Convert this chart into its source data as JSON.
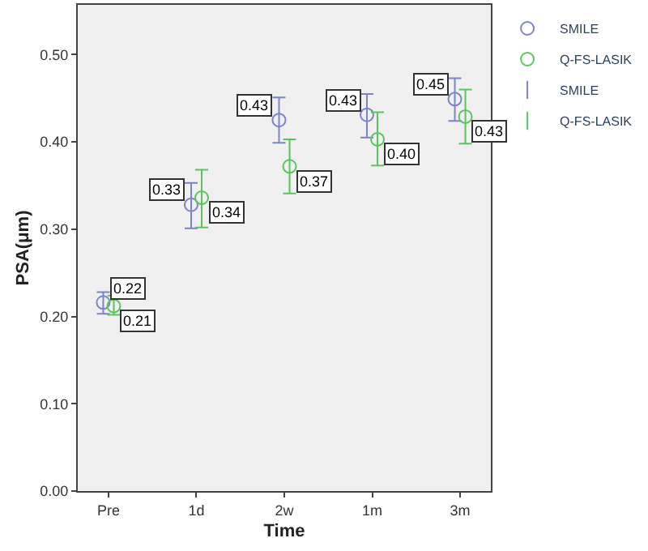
{
  "chart_data": {
    "type": "scatter",
    "xlabel": "Time",
    "ylabel": "PSA(μm)",
    "categories": [
      "Pre",
      "1d",
      "2w",
      "1m",
      "3m"
    ],
    "ylim": [
      0,
      0.557
    ],
    "yticks": [
      {
        "value": 0,
        "label": "0.00"
      },
      {
        "value": 0.1,
        "label": "0.10"
      },
      {
        "value": 0.2,
        "label": "0.20"
      },
      {
        "value": 0.3,
        "label": "0.30"
      },
      {
        "value": 0.4,
        "label": "0.40"
      },
      {
        "value": 0.5,
        "label": "0.50"
      }
    ],
    "grid": false,
    "legend": "top right",
    "marker": "circle",
    "series": [
      {
        "name": "SMILE",
        "color": "#7b83c9",
        "values": [
          0.216,
          0.328,
          0.425,
          0.431,
          0.449
        ],
        "errors": [
          [
            0.203,
            0.228
          ],
          [
            0.301,
            0.353
          ],
          [
            0.399,
            0.451
          ],
          [
            0.405,
            0.455
          ],
          [
            0.424,
            0.473
          ]
        ],
        "value_labels": [
          "0.22",
          "0.33",
          "0.43",
          "0.43",
          "0.45"
        ]
      },
      {
        "name": "Q-FS-LASIK",
        "color": "#5cc45c",
        "values": [
          0.212,
          0.336,
          0.372,
          0.403,
          0.429
        ],
        "errors": [
          [
            0.202,
            0.224
          ],
          [
            0.302,
            0.368
          ],
          [
            0.341,
            0.403
          ],
          [
            0.373,
            0.434
          ],
          [
            0.398,
            0.46
          ]
        ],
        "value_labels": [
          "0.21",
          "0.34",
          "0.37",
          "0.40",
          "0.43"
        ]
      }
    ]
  }
}
